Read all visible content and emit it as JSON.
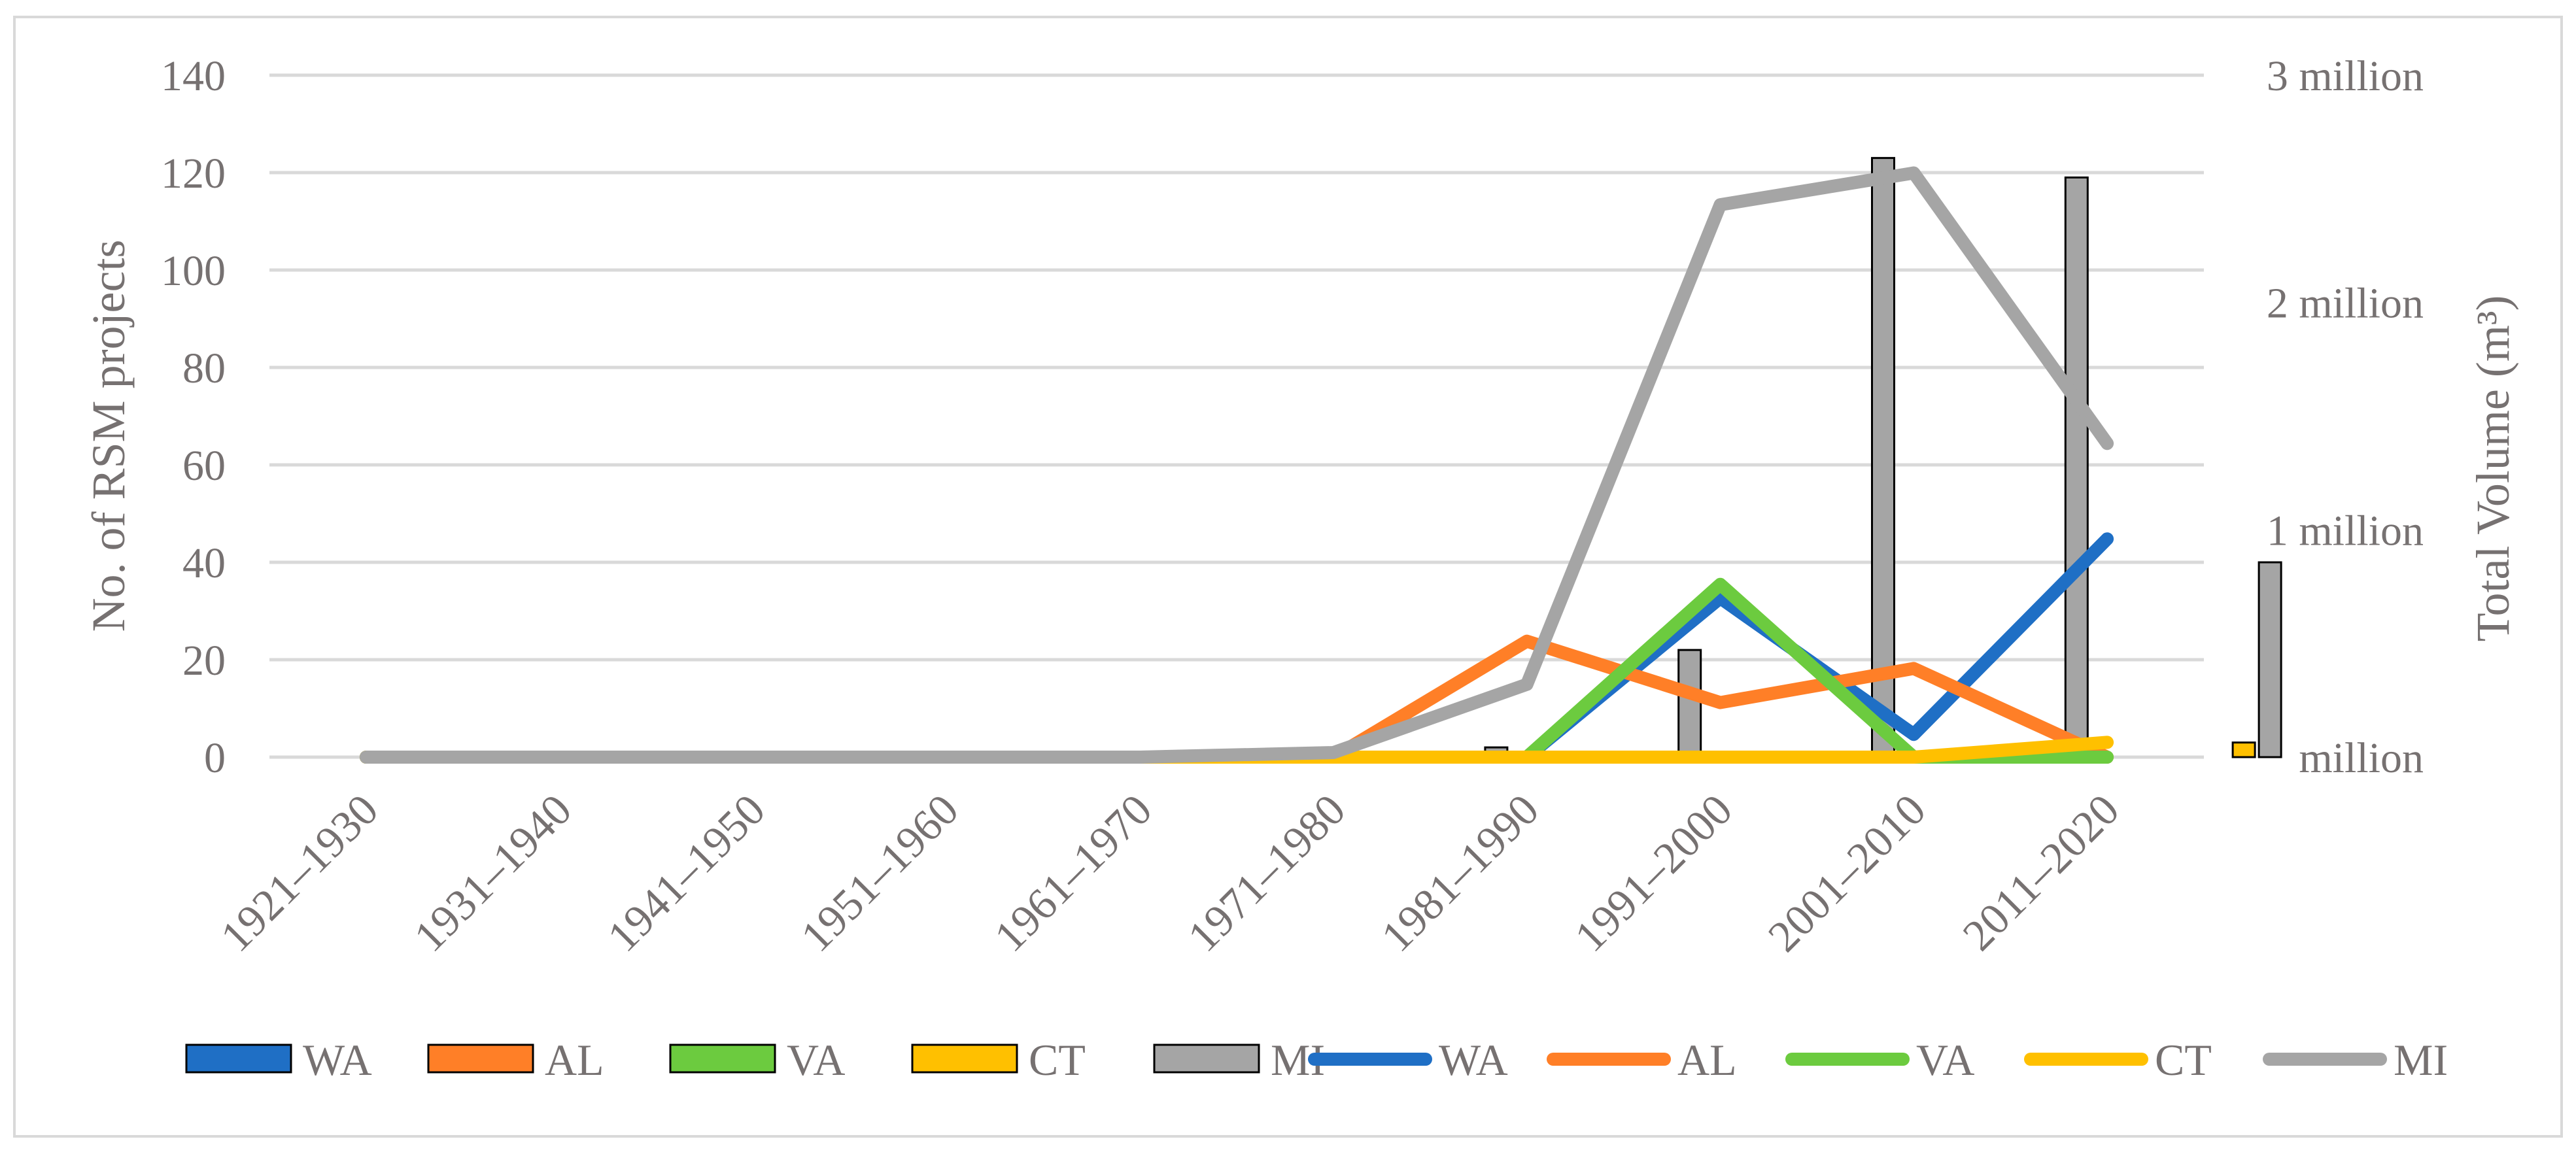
{
  "chart_data": {
    "type": "bar+line",
    "title": "",
    "categories": [
      "1921–1930",
      "1931–1940",
      "1941–1950",
      "1951–1960",
      "1961–1970",
      "1971–1980",
      "1981–1990",
      "1991–2000",
      "2001–2010",
      "2011–2020"
    ],
    "y_left": {
      "label": "No. of RSM projects",
      "range": [
        0,
        140
      ],
      "ticks": [
        "0",
        "20",
        "40",
        "60",
        "80",
        "100",
        "120",
        "140"
      ],
      "tick_values": [
        0,
        20,
        40,
        60,
        80,
        100,
        120,
        140
      ]
    },
    "y_right": {
      "label": "Total Volume (m³)",
      "range": [
        0,
        3000000
      ],
      "ticks": [
        "million",
        "1 million",
        "2 million",
        "3 million"
      ],
      "tick_values": [
        0,
        1000000,
        2000000,
        3000000
      ]
    },
    "grid": true,
    "legend_position": "bottom",
    "bar_series": [
      {
        "name": "WA",
        "color": "#1F6FC5",
        "values": [
          0,
          0,
          0,
          0,
          0,
          0,
          0,
          0,
          0,
          0
        ]
      },
      {
        "name": "AL",
        "color": "#FF7F27",
        "values": [
          0,
          0,
          0,
          0,
          0,
          0,
          0,
          0,
          0,
          0
        ]
      },
      {
        "name": "VA",
        "color": "#6CCB3F",
        "values": [
          0,
          0,
          0,
          0,
          0,
          0,
          0,
          0,
          0,
          0
        ]
      },
      {
        "name": "CT",
        "color": "#FFC000",
        "values": [
          0,
          0,
          0,
          0,
          0,
          0,
          0,
          0,
          0,
          3
        ]
      },
      {
        "name": "MI",
        "color": "#A5A5A5",
        "values": [
          0,
          0,
          0,
          0,
          0,
          2,
          22,
          123,
          119,
          40
        ]
      }
    ],
    "line_series": [
      {
        "name": "WA",
        "color": "#1F6FC5",
        "values": [
          0,
          0,
          0,
          0,
          0,
          0,
          0,
          700000,
          100000,
          960000
        ]
      },
      {
        "name": "AL",
        "color": "#FF7F27",
        "values": [
          0,
          0,
          0,
          0,
          0,
          0,
          510000,
          240000,
          390000,
          0
        ]
      },
      {
        "name": "VA",
        "color": "#6CCB3F",
        "values": [
          0,
          0,
          0,
          0,
          0,
          0,
          0,
          760000,
          0,
          0
        ]
      },
      {
        "name": "CT",
        "color": "#FFC000",
        "values": [
          0,
          0,
          0,
          0,
          0,
          0,
          0,
          0,
          0,
          65000
        ]
      },
      {
        "name": "MI",
        "color": "#A5A5A5",
        "values": [
          0,
          0,
          0,
          0,
          0,
          20000,
          320000,
          2430000,
          2570000,
          1380000
        ]
      }
    ]
  }
}
